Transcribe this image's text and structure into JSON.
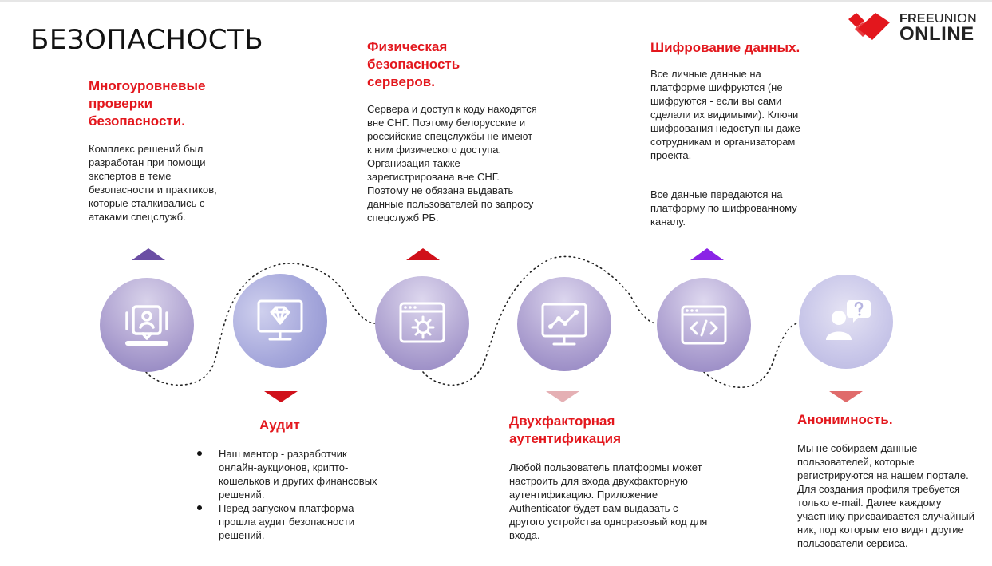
{
  "page": {
    "title": "БЕЗОПАСНОСТЬ"
  },
  "logo": {
    "line1_bold": "FREE",
    "line1_regular": "UNION",
    "line2": "ONLINE",
    "color": "#e3171d"
  },
  "colors": {
    "accent_red": "#e3171d",
    "arrow_purple_dark": "#6b4ea4",
    "arrow_red": "#d0101a",
    "arrow_violet": "#8a24e6",
    "arrow_pink": "#e5b0b4",
    "arrow_rose": "#e06b6b"
  },
  "sections": {
    "multilevel": {
      "heading": "Многоуровневые проверки безопасности.",
      "text": "Комплекс решений был разработан при помощи экспертов в теме безопасности и практиков, которые сталкивались с атаками спецслужб.",
      "icon": "person-badge-icon"
    },
    "audit": {
      "heading": "Аудит",
      "bullets": [
        "Наш ментор - разработчик онлайн-аукционов, крипто-кошельков и других финансовых решений.",
        "Перед запуском платформа прошла аудит безопасности решений."
      ],
      "icon": "diamond-monitor-icon"
    },
    "physical": {
      "heading": "Физическая безопасность серверов.",
      "text": "Сервера и доступ к коду находятся вне СНГ. Поэтому белорусские и российские спецслужбы не имеют к ним физического доступа. Организация также зарегистрирована вне СНГ. Поэтому не обязана выдавать данные пользователей по запросу спецслужб РБ.",
      "icon": "browser-gear-icon"
    },
    "twofactor": {
      "heading": "Двухфакторная аутентификация",
      "text": "Любой пользователь платформы может настроить для входа двухфакторную аутентификацию. Приложение Authenticator будет вам выдавать с другого устройства одноразовый код для входа.",
      "icon": "monitor-chart-icon"
    },
    "encryption": {
      "heading": "Шифрование данных.",
      "text1": "Все личные данные на платформе шифруются (не шифруются - если вы сами сделали их видимыми). Ключи шифрования недоступны даже сотрудникам и организаторам проекта.",
      "text2": "Все данные передаются на платформу по шифрованному каналу.",
      "icon": "code-window-icon"
    },
    "anonymity": {
      "heading": "Анонимность.",
      "text": "Мы не собираем данные пользователей, которые регистрируются на нашем портале. Для создания профиля требуется только e-mail. Далее каждому участнику присваивается случайный ник, под которым его видят другие пользователи сервиса.",
      "icon": "user-question-icon"
    }
  }
}
